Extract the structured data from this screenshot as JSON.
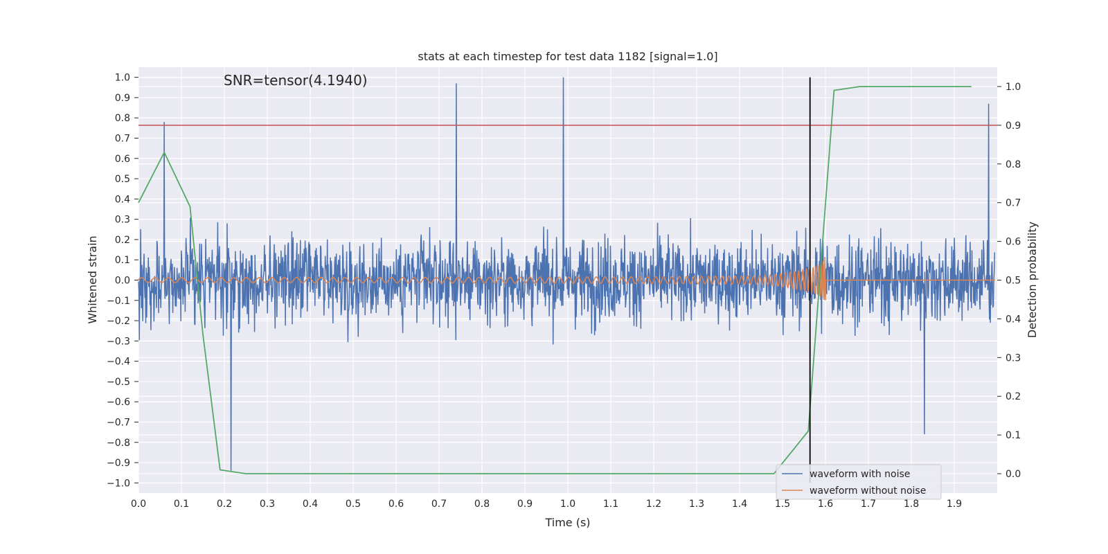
{
  "chart_data": {
    "type": "line",
    "title": "stats at each timestep for test data 1182 [signal=1.0]",
    "xlabel": "Time (s)",
    "ylabel": "Whitened strain",
    "y2label": "Detection probability",
    "annotation": "SNR=tensor(4.1940)",
    "xlim": [
      0.0,
      2.0
    ],
    "ylim": [
      -1.05,
      1.05
    ],
    "y2lim": [
      -0.05,
      1.05
    ],
    "x_ticks": [
      "0.0",
      "0.1",
      "0.2",
      "0.3",
      "0.4",
      "0.5",
      "0.6",
      "0.7",
      "0.8",
      "0.9",
      "1.0",
      "1.1",
      "1.2",
      "1.3",
      "1.4",
      "1.5",
      "1.6",
      "1.7",
      "1.8",
      "1.9"
    ],
    "y_ticks": [
      "1.0",
      "0.9",
      "0.8",
      "0.7",
      "0.6",
      "0.5",
      "0.4",
      "0.3",
      "0.2",
      "0.1",
      "0.0",
      "−0.1",
      "−0.2",
      "−0.3",
      "−0.4",
      "−0.5",
      "−0.6",
      "−0.7",
      "−0.8",
      "−0.9",
      "−1.0"
    ],
    "y2_ticks": [
      "1.0",
      "0.9",
      "0.8",
      "0.7",
      "0.6",
      "0.5",
      "0.4",
      "0.3",
      "0.2",
      "0.1",
      "0.0"
    ],
    "threshold_y2": 0.9,
    "marker_x": 1.564,
    "grid": true,
    "legend_position": "lower-right",
    "colors": {
      "noisy": "#4c72b0",
      "clean": "#dd8452",
      "probability": "#55a868",
      "threshold": "#c44e52",
      "marker": "#000000",
      "plot_bg": "#eaeaf2"
    },
    "series": [
      {
        "name": "waveform with noise",
        "description_peaks": [
          {
            "x": 0.06,
            "y": 0.78
          },
          {
            "x": 0.74,
            "y": 0.97
          },
          {
            "x": 0.99,
            "y": 1.0
          },
          {
            "x": 1.98,
            "y": 0.87
          },
          {
            "x": 0.215,
            "y": -0.94
          },
          {
            "x": 1.83,
            "y": -0.76
          }
        ]
      },
      {
        "name": "waveform without noise",
        "chirp_end_x": 1.6
      },
      {
        "x": [
          0.0,
          0.06,
          0.12,
          0.15,
          0.19,
          0.25,
          0.5,
          1.0,
          1.48,
          1.56,
          1.62,
          1.68,
          1.94
        ],
        "y": [
          0.7,
          0.83,
          0.69,
          0.36,
          0.01,
          0.0,
          0.0,
          0.0,
          0.0,
          0.11,
          0.99,
          1.0,
          1.0
        ]
      }
    ]
  }
}
